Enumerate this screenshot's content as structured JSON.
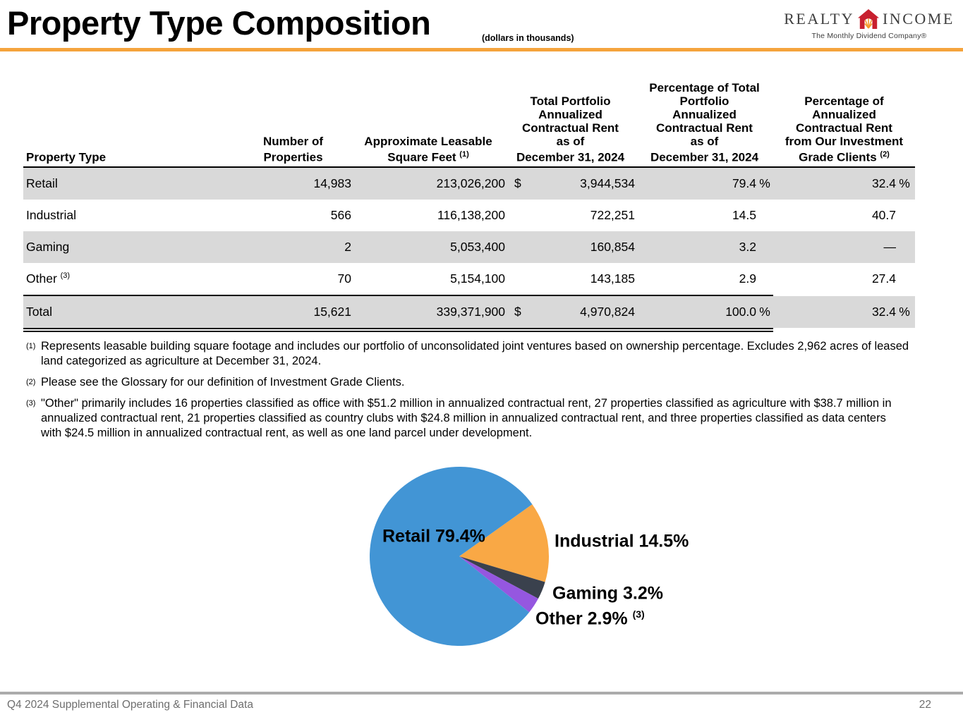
{
  "header": {
    "title": "Property Type Composition",
    "subtitle": "(dollars in thousands)",
    "accent_color": "#F5A33C",
    "logo": {
      "word_left": "REALTY",
      "word_right": "INCOME",
      "tagline": "The Monthly Dividend Company®",
      "house_red": "#C8202F",
      "house_sun": "#F59B2D"
    }
  },
  "table": {
    "columns": [
      {
        "label": "Property Type",
        "sup": ""
      },
      {
        "label": "Number of\nProperties",
        "sup": ""
      },
      {
        "label": "Approximate Leasable\nSquare Feet ",
        "sup": "(1)"
      },
      {
        "label": "Total Portfolio\nAnnualized\nContractual Rent\nas of\nDecember 31, 2024",
        "sup": ""
      },
      {
        "label": "Percentage of Total\nPortfolio\nAnnualized\nContractual Rent\nas of\nDecember 31, 2024",
        "sup": ""
      },
      {
        "label": "Percentage of\nAnnualized\nContractual Rent\nfrom Our Investment\nGrade Clients ",
        "sup": "(2)"
      }
    ],
    "rows": [
      {
        "type": "Retail",
        "sup": "",
        "properties": "14,983",
        "sqft": "213,026,200",
        "dollar": "$",
        "rent": "3,944,534",
        "pct": "79.4",
        "pct_sign": "%",
        "ig": "32.4",
        "ig_sign": "%"
      },
      {
        "type": "Industrial",
        "sup": "",
        "properties": "566",
        "sqft": "116,138,200",
        "dollar": "",
        "rent": "722,251",
        "pct": "14.5",
        "pct_sign": "",
        "ig": "40.7",
        "ig_sign": ""
      },
      {
        "type": "Gaming",
        "sup": "",
        "properties": "2",
        "sqft": "5,053,400",
        "dollar": "",
        "rent": "160,854",
        "pct": "3.2",
        "pct_sign": "",
        "ig": "—",
        "ig_sign": ""
      },
      {
        "type": "Other ",
        "sup": "(3)",
        "properties": "70",
        "sqft": "5,154,100",
        "dollar": "",
        "rent": "143,185",
        "pct": "2.9",
        "pct_sign": "",
        "ig": "27.4",
        "ig_sign": ""
      }
    ],
    "total": {
      "type": "Total",
      "sup": "",
      "properties": "15,621",
      "sqft": "339,371,900",
      "dollar": "$",
      "rent": "4,970,824",
      "pct": "100.0",
      "pct_sign": "%",
      "ig": "32.4",
      "ig_sign": "%"
    }
  },
  "footnotes": [
    {
      "sup": "(1)",
      "text": "Represents leasable building square footage and includes our portfolio of unconsolidated joint ventures based on ownership percentage. Excludes 2,962 acres of leased land categorized as agriculture at December 31, 2024."
    },
    {
      "sup": "(2)",
      "text": "Please see the Glossary for our definition of Investment Grade Clients."
    },
    {
      "sup": "(3)",
      "text": "\"Other\" primarily includes 16 properties classified as office with $51.2 million in annualized contractual rent, 27 properties classified as agriculture with $38.7 million in annualized contractual rent, 21 properties classified as country clubs with $24.8 million in annualized contractual rent, and three properties classified as data centers with $24.5 million in annualized contractual rent, as well as one land parcel under development."
    }
  ],
  "chart_data": {
    "type": "pie",
    "title": "",
    "legend_position": "none",
    "start_angle_deg": 54.5,
    "categories": [
      "Industrial",
      "Gaming",
      "Other",
      "Retail"
    ],
    "values": [
      14.5,
      3.2,
      2.9,
      79.4
    ],
    "slices": [
      {
        "label": "Industrial",
        "value": 14.5,
        "color": "#F9A845",
        "text": "Industrial 14.5%",
        "sup": ""
      },
      {
        "label": "Gaming",
        "value": 3.2,
        "color": "#3A414D",
        "text": "Gaming 3.2%",
        "sup": ""
      },
      {
        "label": "Other",
        "value": 2.9,
        "color": "#9557E0",
        "text": "Other 2.9% ",
        "sup": "(3)"
      },
      {
        "label": "Retail",
        "value": 79.4,
        "color": "#4295D5",
        "text": "Retail 79.4%",
        "sup": ""
      }
    ]
  },
  "footer": {
    "left": "Q4 2024 Supplemental Operating & Financial Data",
    "page": "22"
  }
}
